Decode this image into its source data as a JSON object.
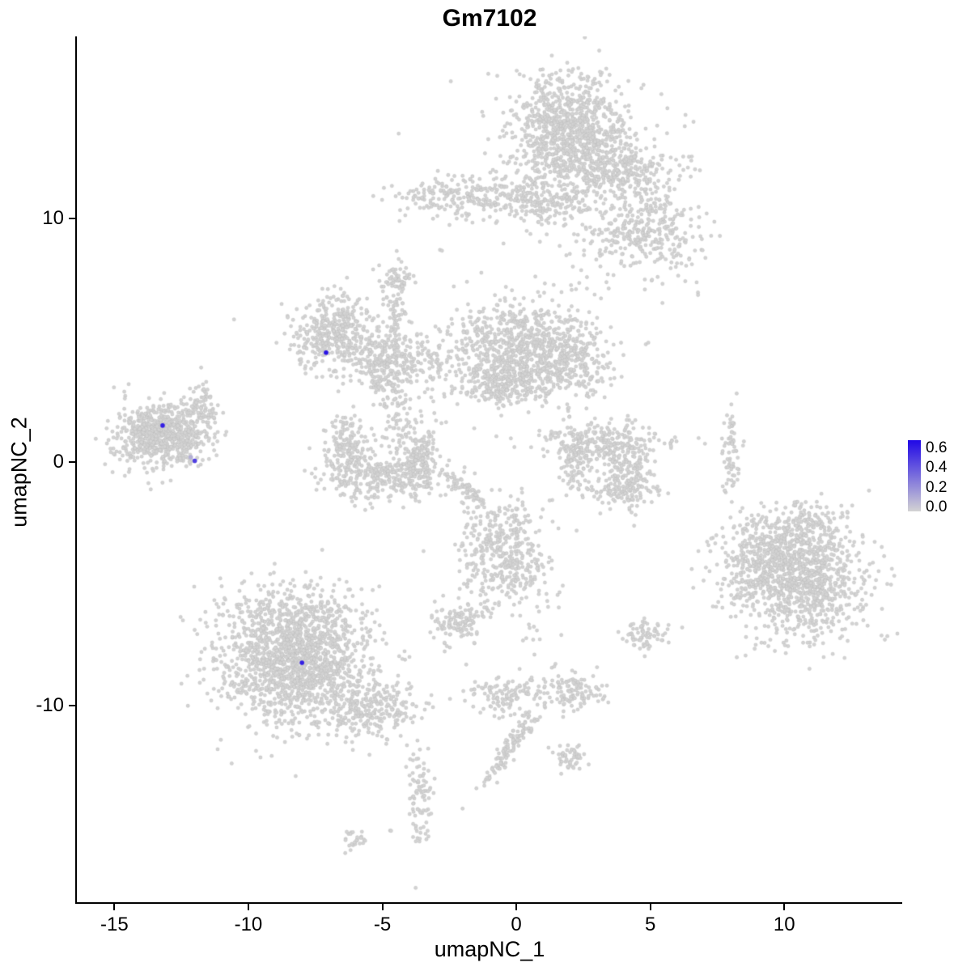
{
  "title": "Gm7102",
  "axes": {
    "x_label": "umapNC_1",
    "y_label": "umapNC_2",
    "x_ticks": [
      "-15",
      "-10",
      "-5",
      "0",
      "5",
      "10"
    ],
    "x_tick_values": [
      -15,
      -10,
      -5,
      0,
      5,
      10
    ],
    "y_ticks": [
      "-10",
      "0",
      "10"
    ],
    "y_tick_values": [
      -10,
      0,
      10
    ],
    "x_range": [
      -16.4,
      14.4
    ],
    "y_range": [
      -18.1,
      17.5
    ]
  },
  "legend": {
    "tick_labels": [
      "0.6",
      "0.4",
      "0.2",
      "0.0"
    ],
    "tick_values": [
      0.6,
      0.4,
      0.2,
      0.0
    ],
    "vmin": -0.04,
    "vmax": 0.68
  },
  "colors": {
    "point_low": "#D3D3D3",
    "point_high": "#2008E6",
    "axis": "#000000",
    "background": "#FFFFFF"
  },
  "chart_data": {
    "type": "scatter",
    "title": "Gm7102",
    "xlabel": "umapNC_1",
    "ylabel": "umapNC_2",
    "xlim": [
      -16.4,
      14.4
    ],
    "ylim": [
      -18.1,
      17.5
    ],
    "grid": false,
    "legend_position": "right",
    "point_radius": 2.2,
    "highlight_radius": 2.8,
    "seed": 42,
    "clusters": [
      {
        "cx": 1.9,
        "cy": 13.6,
        "sdx": 1.05,
        "sdy": 1.15,
        "n": 900
      },
      {
        "cx": 3.9,
        "cy": 11.9,
        "sdx": 1.0,
        "sdy": 0.65,
        "n": 320
      },
      {
        "cx": -1.9,
        "cy": 10.9,
        "sdx": 1.25,
        "sdy": 0.45,
        "n": 240
      },
      {
        "cx": 1.0,
        "cy": 10.8,
        "sdx": 0.9,
        "sdy": 0.45,
        "n": 170
      },
      {
        "cx": 4.9,
        "cy": 9.6,
        "sdx": 0.95,
        "sdy": 0.65,
        "n": 270
      },
      {
        "cx": 3.6,
        "cy": 8.6,
        "sdx": 1.1,
        "sdy": 0.9,
        "n": 70
      },
      {
        "cx": 6.1,
        "cy": 8.3,
        "sdx": 0.25,
        "sdy": 0.3,
        "n": 12
      },
      {
        "cx": 2.3,
        "cy": 12.6,
        "sdx": 2.2,
        "sdy": 1.8,
        "n": 120
      },
      {
        "cx": -6.8,
        "cy": 5.3,
        "sdx": 0.85,
        "sdy": 0.75,
        "n": 420
      },
      {
        "cx": -4.4,
        "cy": 4.2,
        "sdx": 1.0,
        "sdy": 0.5,
        "n": 210
      },
      {
        "cx": -4.5,
        "cy": 6.2,
        "sdx": 0.25,
        "sdy": 1.1,
        "n": 90
      },
      {
        "cx": -4.4,
        "cy": 7.5,
        "sdx": 0.3,
        "sdy": 0.3,
        "n": 40
      },
      {
        "cx": 0.1,
        "cy": 4.7,
        "sdx": 1.4,
        "sdy": 1.0,
        "n": 800
      },
      {
        "cx": -0.4,
        "cy": 3.2,
        "sdx": 0.9,
        "sdy": 0.5,
        "n": 230
      },
      {
        "cx": 2.1,
        "cy": 4.1,
        "sdx": 0.65,
        "sdy": 0.75,
        "n": 200
      },
      {
        "cx": -5.0,
        "cy": 3.7,
        "sdx": 0.35,
        "sdy": 0.45,
        "n": 80
      },
      {
        "cx": -4.5,
        "cy": 2.0,
        "sdx": 0.22,
        "sdy": 0.9,
        "n": 60
      },
      {
        "cx": -6.3,
        "cy": 0.6,
        "sdx": 0.4,
        "sdy": 0.7,
        "n": 150
      },
      {
        "cx": -4.9,
        "cy": -0.6,
        "sdx": 1.2,
        "sdy": 0.5,
        "n": 340
      },
      {
        "cx": -3.6,
        "cy": 0.4,
        "sdx": 0.35,
        "sdy": 0.7,
        "n": 150
      },
      {
        "cx": -13.2,
        "cy": 1.1,
        "sdx": 0.85,
        "sdy": 0.65,
        "n": 700
      },
      {
        "cx": -11.8,
        "cy": 2.2,
        "sdx": 0.3,
        "sdy": 0.55,
        "n": 90
      },
      {
        "cx": 3.2,
        "cy": 0.8,
        "sdx": 1.15,
        "sdy": 0.4,
        "n": 240
      },
      {
        "cx": 4.1,
        "cy": -0.4,
        "sdx": 0.45,
        "sdy": 0.7,
        "n": 170
      },
      {
        "cx": 2.15,
        "cy": 0.0,
        "sdx": 0.3,
        "sdy": 0.6,
        "n": 100
      },
      {
        "cx": 3.7,
        "cy": -1.2,
        "sdx": 0.85,
        "sdy": 0.25,
        "n": 80
      },
      {
        "cx": 8.0,
        "cy": 0.4,
        "sdx": 0.18,
        "sdy": 0.85,
        "n": 70
      },
      {
        "cx": 10.6,
        "cy": -4.7,
        "sdx": 1.25,
        "sdy": 1.25,
        "n": 1050
      },
      {
        "cx": 9.2,
        "cy": -3.9,
        "sdx": 0.8,
        "sdy": 0.9,
        "n": 280
      },
      {
        "cx": 10.8,
        "cy": -2.6,
        "sdx": 0.6,
        "sdy": 0.5,
        "n": 90
      },
      {
        "cx": -0.5,
        "cy": -3.8,
        "sdx": 0.85,
        "sdy": 1.05,
        "n": 430
      },
      {
        "cx": -2.1,
        "cy": -6.6,
        "sdx": 0.5,
        "sdy": 0.4,
        "n": 120
      },
      {
        "cx": 4.9,
        "cy": -7.1,
        "sdx": 0.4,
        "sdy": 0.35,
        "n": 70
      },
      {
        "cx": -8.3,
        "cy": -8.1,
        "sdx": 1.35,
        "sdy": 1.3,
        "n": 1500
      },
      {
        "cx": -8.6,
        "cy": -6.3,
        "sdx": 1.3,
        "sdy": 0.7,
        "n": 200
      },
      {
        "cx": -5.4,
        "cy": -10.1,
        "sdx": 0.9,
        "sdy": 0.6,
        "n": 280
      },
      {
        "cx": -0.4,
        "cy": -9.5,
        "sdx": 0.7,
        "sdy": 0.4,
        "n": 120
      },
      {
        "cx": 2.2,
        "cy": -9.4,
        "sdx": 0.55,
        "sdy": 0.4,
        "n": 110
      },
      {
        "cx": -0.2,
        "cy": -11.7,
        "sdx": 0.16,
        "sdy": 1.15,
        "n": 130,
        "rot": -0.55
      },
      {
        "cx": 2.0,
        "cy": -12.1,
        "sdx": 0.3,
        "sdy": 0.35,
        "n": 50
      },
      {
        "cx": -3.6,
        "cy": -13.7,
        "sdx": 0.22,
        "sdy": 1.0,
        "n": 90
      },
      {
        "cx": -6.0,
        "cy": -15.6,
        "sdx": 0.3,
        "sdy": 0.25,
        "n": 25
      },
      {
        "cx": -4.7,
        "cy": -15.2,
        "sdx": 0.05,
        "sdy": 0.05,
        "n": 2
      },
      {
        "cx": -10.5,
        "cy": 5.9,
        "sdx": 0.05,
        "sdy": 0.05,
        "n": 1
      },
      {
        "cx": 6.8,
        "cy": 6.9,
        "sdx": 0.06,
        "sdy": 0.06,
        "n": 2
      },
      {
        "cx": -2.9,
        "cy": 8.6,
        "sdx": 0.1,
        "sdy": 0.1,
        "n": 2
      },
      {
        "cx": -1.8,
        "cy": -1.2,
        "sdx": 0.55,
        "sdy": 0.12,
        "n": 60,
        "rot": -0.73
      },
      {
        "cx": -3.0,
        "cy": 2.3,
        "sdx": 0.9,
        "sdy": 1.3,
        "n": 25
      },
      {
        "cx": 0.8,
        "cy": -6.8,
        "sdx": 0.6,
        "sdy": 0.8,
        "n": 15
      }
    ],
    "highlighted_points": [
      {
        "x": -7.1,
        "y": 4.5,
        "v": 0.65
      },
      {
        "x": -13.2,
        "y": 1.5,
        "v": 0.6
      },
      {
        "x": -12.0,
        "y": 0.05,
        "v": 0.5
      },
      {
        "x": -12.15,
        "y": 0.2,
        "v": 0.12
      },
      {
        "x": -8.0,
        "y": -8.25,
        "v": 0.6
      }
    ]
  }
}
